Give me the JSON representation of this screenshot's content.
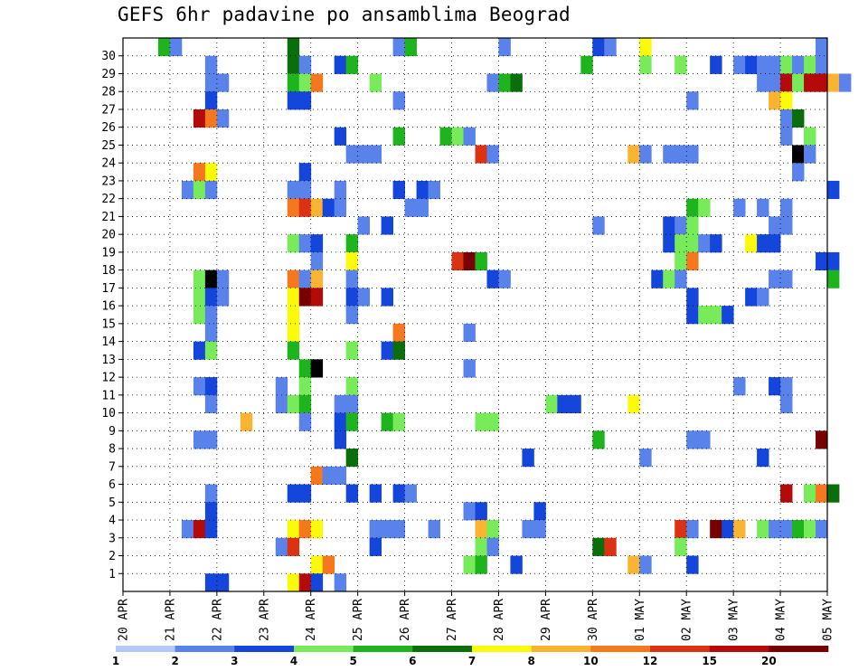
{
  "chart_data": {
    "type": "heatmap",
    "title": "GEFS 6hr padavine po ansamblima Beograd",
    "xlabel": "",
    "ylabel": "",
    "x_tick_labels": [
      "20 APR",
      "21 APR",
      "22 APR",
      "23 APR",
      "24 APR",
      "25 APR",
      "26 APR",
      "27 APR",
      "28 APR",
      "29 APR",
      "30 APR",
      "01 MAY",
      "02 MAY",
      "03 MAY",
      "04 MAY",
      "05 MAY"
    ],
    "x_steps_per_day": 4,
    "x_range_steps": [
      0,
      60
    ],
    "y_members": [
      "1",
      "2",
      "3",
      "4",
      "5",
      "6",
      "7",
      "8",
      "9",
      "10",
      "11",
      "12",
      "13",
      "14",
      "15",
      "16",
      "17",
      "18",
      "19",
      "20",
      "21",
      "22",
      "23",
      "24",
      "25",
      "26",
      "27",
      "28",
      "29",
      "30"
    ],
    "grid": true,
    "legend_placement": "bottom",
    "colorbar": {
      "labels": [
        "1",
        "2",
        "3",
        "4",
        "5",
        "6",
        "7",
        "8",
        "10",
        "12",
        "15",
        "20"
      ],
      "colors": [
        "#b4c8f5",
        "#5a82eb",
        "#1446dc",
        "#78eb5a",
        "#1eb41e",
        "#0a6e0a",
        "#fafa0a",
        "#fab432",
        "#f5781e",
        "#dc3214",
        "#b40a0a",
        "#780000"
      ]
    },
    "cells": [
      [
        3,
        30,
        4
      ],
      [
        4,
        30,
        1
      ],
      [
        14,
        30,
        5
      ],
      [
        23,
        30,
        1
      ],
      [
        24,
        30,
        4
      ],
      [
        32,
        30,
        1
      ],
      [
        40,
        30,
        2
      ],
      [
        41,
        30,
        1
      ],
      [
        44,
        30,
        6
      ],
      [
        59,
        30,
        1
      ],
      [
        7,
        29,
        1
      ],
      [
        14,
        29,
        5
      ],
      [
        15,
        29,
        1
      ],
      [
        18,
        29,
        2
      ],
      [
        19,
        29,
        4
      ],
      [
        39,
        29,
        4
      ],
      [
        44,
        29,
        3
      ],
      [
        47,
        29,
        3
      ],
      [
        50,
        29,
        2
      ],
      [
        52,
        29,
        1
      ],
      [
        53,
        29,
        2
      ],
      [
        54,
        29,
        1
      ],
      [
        55,
        29,
        1
      ],
      [
        56,
        29,
        3
      ],
      [
        57,
        29,
        1
      ],
      [
        58,
        29,
        3
      ],
      [
        59,
        29,
        1
      ],
      [
        7,
        28,
        1
      ],
      [
        8,
        28,
        1
      ],
      [
        14,
        28,
        4
      ],
      [
        15,
        28,
        3
      ],
      [
        16,
        28,
        8
      ],
      [
        21,
        28,
        3
      ],
      [
        31,
        28,
        1
      ],
      [
        32,
        28,
        4
      ],
      [
        33,
        28,
        5
      ],
      [
        54,
        28,
        1
      ],
      [
        55,
        28,
        1
      ],
      [
        56,
        28,
        10
      ],
      [
        57,
        28,
        3
      ],
      [
        58,
        28,
        10
      ],
      [
        59,
        28,
        10
      ],
      [
        60,
        28,
        7
      ],
      [
        61,
        28,
        1
      ],
      [
        7,
        27,
        2
      ],
      [
        14,
        27,
        2
      ],
      [
        15,
        27,
        2
      ],
      [
        23,
        27,
        1
      ],
      [
        48,
        27,
        1
      ],
      [
        55,
        27,
        7
      ],
      [
        56,
        27,
        6
      ],
      [
        6,
        26,
        10
      ],
      [
        7,
        26,
        8
      ],
      [
        8,
        26,
        1
      ],
      [
        56,
        26,
        1
      ],
      [
        57,
        26,
        5
      ],
      [
        18,
        25,
        2
      ],
      [
        23,
        25,
        4
      ],
      [
        27,
        25,
        4
      ],
      [
        28,
        25,
        3
      ],
      [
        29,
        25,
        1
      ],
      [
        56,
        25,
        1
      ],
      [
        58,
        25,
        3
      ],
      [
        19,
        24,
        1
      ],
      [
        20,
        24,
        1
      ],
      [
        21,
        24,
        1
      ],
      [
        30,
        24,
        9
      ],
      [
        31,
        24,
        1
      ],
      [
        43,
        24,
        7
      ],
      [
        44,
        24,
        1
      ],
      [
        46,
        24,
        1
      ],
      [
        47,
        24,
        1
      ],
      [
        48,
        24,
        1
      ],
      [
        57,
        24,
        12
      ],
      [
        58,
        24,
        1
      ],
      [
        6,
        23,
        8
      ],
      [
        7,
        23,
        6
      ],
      [
        15,
        23,
        2
      ],
      [
        57,
        23,
        1
      ],
      [
        5,
        22,
        1
      ],
      [
        6,
        22,
        3
      ],
      [
        7,
        22,
        1
      ],
      [
        14,
        22,
        1
      ],
      [
        15,
        22,
        1
      ],
      [
        18,
        22,
        1
      ],
      [
        23,
        22,
        2
      ],
      [
        25,
        22,
        2
      ],
      [
        26,
        22,
        1
      ],
      [
        60,
        22,
        2
      ],
      [
        14,
        21,
        8
      ],
      [
        15,
        21,
        9
      ],
      [
        16,
        21,
        7
      ],
      [
        17,
        21,
        2
      ],
      [
        18,
        21,
        1
      ],
      [
        24,
        21,
        1
      ],
      [
        25,
        21,
        1
      ],
      [
        48,
        21,
        4
      ],
      [
        49,
        21,
        3
      ],
      [
        52,
        21,
        1
      ],
      [
        54,
        21,
        1
      ],
      [
        56,
        21,
        1
      ],
      [
        20,
        20,
        1
      ],
      [
        22,
        20,
        2
      ],
      [
        40,
        20,
        1
      ],
      [
        46,
        20,
        2
      ],
      [
        47,
        20,
        1
      ],
      [
        48,
        20,
        3
      ],
      [
        55,
        20,
        1
      ],
      [
        56,
        20,
        1
      ],
      [
        14,
        19,
        3
      ],
      [
        15,
        19,
        1
      ],
      [
        16,
        19,
        2
      ],
      [
        19,
        19,
        4
      ],
      [
        46,
        19,
        2
      ],
      [
        47,
        19,
        3
      ],
      [
        48,
        19,
        3
      ],
      [
        49,
        19,
        1
      ],
      [
        50,
        19,
        2
      ],
      [
        53,
        19,
        6
      ],
      [
        54,
        19,
        2
      ],
      [
        55,
        19,
        2
      ],
      [
        16,
        18,
        1
      ],
      [
        19,
        18,
        6
      ],
      [
        28,
        18,
        9
      ],
      [
        29,
        18,
        11
      ],
      [
        30,
        18,
        4
      ],
      [
        47,
        18,
        3
      ],
      [
        48,
        18,
        8
      ],
      [
        59,
        18,
        2
      ],
      [
        60,
        18,
        2
      ],
      [
        6,
        17,
        3
      ],
      [
        7,
        17,
        12
      ],
      [
        8,
        17,
        1
      ],
      [
        14,
        17,
        8
      ],
      [
        15,
        17,
        1
      ],
      [
        16,
        17,
        7
      ],
      [
        19,
        17,
        1
      ],
      [
        31,
        17,
        2
      ],
      [
        32,
        17,
        1
      ],
      [
        45,
        17,
        2
      ],
      [
        46,
        17,
        3
      ],
      [
        47,
        17,
        1
      ],
      [
        55,
        17,
        1
      ],
      [
        56,
        17,
        1
      ],
      [
        60,
        17,
        4
      ],
      [
        6,
        16,
        3
      ],
      [
        7,
        16,
        2
      ],
      [
        8,
        16,
        1
      ],
      [
        14,
        16,
        6
      ],
      [
        15,
        16,
        11
      ],
      [
        16,
        16,
        10
      ],
      [
        19,
        16,
        2
      ],
      [
        20,
        16,
        1
      ],
      [
        22,
        16,
        2
      ],
      [
        48,
        16,
        2
      ],
      [
        53,
        16,
        2
      ],
      [
        54,
        16,
        1
      ],
      [
        6,
        15,
        3
      ],
      [
        7,
        15,
        1
      ],
      [
        14,
        15,
        6
      ],
      [
        19,
        15,
        1
      ],
      [
        48,
        15,
        2
      ],
      [
        49,
        15,
        3
      ],
      [
        50,
        15,
        3
      ],
      [
        51,
        15,
        2
      ],
      [
        7,
        14,
        1
      ],
      [
        14,
        14,
        6
      ],
      [
        23,
        14,
        8
      ],
      [
        29,
        14,
        1
      ],
      [
        6,
        13,
        2
      ],
      [
        7,
        13,
        3
      ],
      [
        14,
        13,
        4
      ],
      [
        19,
        13,
        3
      ],
      [
        22,
        13,
        2
      ],
      [
        23,
        13,
        5
      ],
      [
        15,
        12,
        4
      ],
      [
        16,
        12,
        12
      ],
      [
        29,
        12,
        1
      ],
      [
        13,
        11,
        1
      ],
      [
        15,
        11,
        3
      ],
      [
        19,
        11,
        3
      ],
      [
        6,
        11,
        1
      ],
      [
        7,
        11,
        2
      ],
      [
        52,
        11,
        1
      ],
      [
        55,
        11,
        2
      ],
      [
        56,
        11,
        1
      ],
      [
        7,
        10,
        1
      ],
      [
        13,
        10,
        1
      ],
      [
        14,
        10,
        3
      ],
      [
        15,
        10,
        4
      ],
      [
        18,
        10,
        1
      ],
      [
        19,
        10,
        1
      ],
      [
        36,
        10,
        3
      ],
      [
        37,
        10,
        2
      ],
      [
        38,
        10,
        2
      ],
      [
        43,
        10,
        6
      ],
      [
        56,
        10,
        1
      ],
      [
        10,
        9,
        7
      ],
      [
        15,
        9,
        1
      ],
      [
        18,
        9,
        2
      ],
      [
        19,
        9,
        4
      ],
      [
        22,
        9,
        4
      ],
      [
        23,
        9,
        3
      ],
      [
        30,
        9,
        3
      ],
      [
        31,
        9,
        3
      ],
      [
        6,
        8,
        1
      ],
      [
        7,
        8,
        1
      ],
      [
        18,
        8,
        2
      ],
      [
        40,
        8,
        4
      ],
      [
        48,
        8,
        1
      ],
      [
        49,
        8,
        1
      ],
      [
        59,
        8,
        11
      ],
      [
        19,
        7,
        5
      ],
      [
        34,
        7,
        2
      ],
      [
        44,
        7,
        1
      ],
      [
        54,
        7,
        2
      ],
      [
        16,
        6,
        8
      ],
      [
        17,
        6,
        1
      ],
      [
        18,
        6,
        1
      ],
      [
        7,
        5,
        1
      ],
      [
        14,
        5,
        2
      ],
      [
        15,
        5,
        2
      ],
      [
        19,
        5,
        2
      ],
      [
        21,
        5,
        2
      ],
      [
        23,
        5,
        2
      ],
      [
        24,
        5,
        1
      ],
      [
        56,
        5,
        10
      ],
      [
        58,
        5,
        3
      ],
      [
        59,
        5,
        8
      ],
      [
        60,
        5,
        5
      ],
      [
        7,
        4,
        2
      ],
      [
        29,
        4,
        1
      ],
      [
        30,
        4,
        2
      ],
      [
        35,
        4,
        2
      ],
      [
        5,
        3,
        1
      ],
      [
        6,
        3,
        10
      ],
      [
        7,
        3,
        2
      ],
      [
        14,
        3,
        6
      ],
      [
        15,
        3,
        8
      ],
      [
        16,
        3,
        6
      ],
      [
        21,
        3,
        1
      ],
      [
        22,
        3,
        1
      ],
      [
        23,
        3,
        1
      ],
      [
        26,
        3,
        1
      ],
      [
        30,
        3,
        7
      ],
      [
        31,
        3,
        3
      ],
      [
        34,
        3,
        1
      ],
      [
        35,
        3,
        1
      ],
      [
        47,
        3,
        9
      ],
      [
        48,
        3,
        1
      ],
      [
        50,
        3,
        11
      ],
      [
        51,
        3,
        2
      ],
      [
        52,
        3,
        7
      ],
      [
        54,
        3,
        3
      ],
      [
        55,
        3,
        1
      ],
      [
        56,
        3,
        1
      ],
      [
        57,
        3,
        4
      ],
      [
        58,
        3,
        3
      ],
      [
        59,
        3,
        1
      ],
      [
        13,
        2,
        1
      ],
      [
        14,
        2,
        9
      ],
      [
        21,
        2,
        2
      ],
      [
        30,
        2,
        3
      ],
      [
        31,
        2,
        1
      ],
      [
        40,
        2,
        5
      ],
      [
        41,
        2,
        9
      ],
      [
        47,
        2,
        3
      ],
      [
        16,
        1,
        6
      ],
      [
        17,
        1,
        8
      ],
      [
        29,
        1,
        3
      ],
      [
        30,
        1,
        4
      ],
      [
        33,
        1,
        2
      ],
      [
        43,
        1,
        7
      ],
      [
        44,
        1,
        1
      ],
      [
        48,
        1,
        2
      ],
      [
        7,
        0,
        2
      ],
      [
        8,
        0,
        2
      ],
      [
        14,
        0,
        6
      ],
      [
        15,
        0,
        10
      ],
      [
        16,
        0,
        2
      ],
      [
        18,
        0,
        1
      ]
    ]
  }
}
